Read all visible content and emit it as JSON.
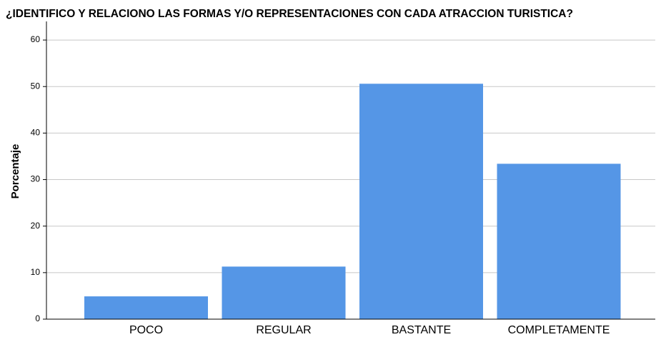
{
  "chart_data": {
    "type": "bar",
    "title": "¿IDENTIFICO Y RELACIONO LAS FORMAS Y/O REPRESENTACIONES CON CADA ATRACCION TURISTICA?",
    "y_label": "Porcentaje",
    "categories": [
      "POCO",
      "REGULAR",
      "BASTANTE",
      "COMPLETAMENTE"
    ],
    "values": [
      4.9,
      11.3,
      50.6,
      33.4
    ],
    "color": "#5596e6",
    "ylim": [
      0,
      64
    ],
    "yticks": [
      0,
      10,
      20,
      30,
      40,
      50,
      60
    ],
    "grid": true
  }
}
